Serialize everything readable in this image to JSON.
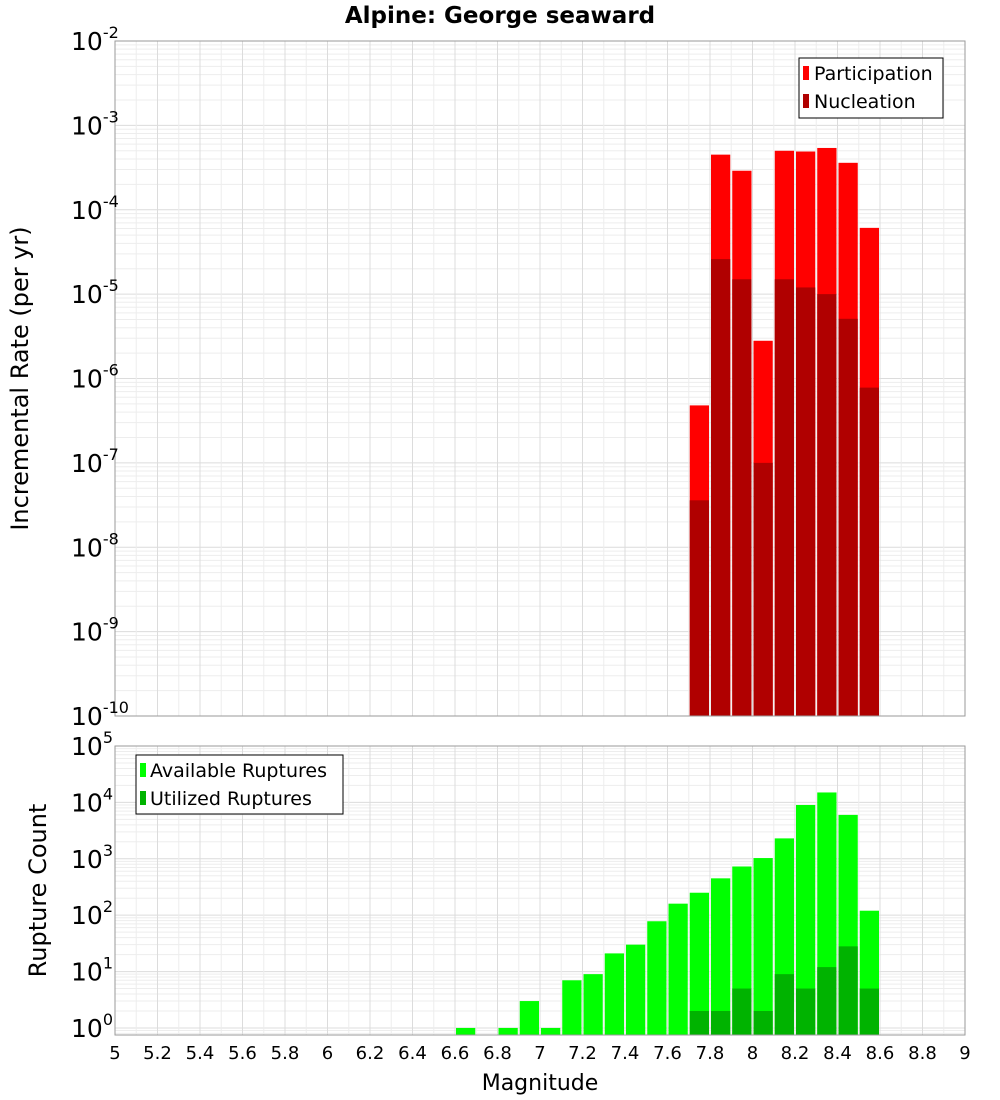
{
  "colors": {
    "participation": "#ff0000",
    "nucleation": "#b00000",
    "available": "#00ff00",
    "utilized": "#00b300",
    "grid_major": "#dcdcdc",
    "grid_minor": "#ededed"
  },
  "chart_data": [
    {
      "type": "bar",
      "title": "Alpine: George seaward",
      "xlabel": "",
      "ylabel": "Incremental Rate (per yr)",
      "y_scale": "log",
      "ylim": [
        1e-10,
        0.01
      ],
      "y_tick_labels": [
        {
          "base": "10",
          "exp": "-10"
        },
        {
          "base": "10",
          "exp": "-9"
        },
        {
          "base": "10",
          "exp": "-8"
        },
        {
          "base": "10",
          "exp": "-7"
        },
        {
          "base": "10",
          "exp": "-6"
        },
        {
          "base": "10",
          "exp": "-5"
        },
        {
          "base": "10",
          "exp": "-4"
        },
        {
          "base": "10",
          "exp": "-3"
        },
        {
          "base": "10",
          "exp": "-2"
        }
      ],
      "xlim": [
        5,
        9
      ],
      "bin_width": 0.1,
      "grid": true,
      "legend_position": "top-right",
      "series": [
        {
          "name": "Participation",
          "x": [
            7.75,
            7.85,
            7.95,
            8.05,
            8.15,
            8.25,
            8.35,
            8.45,
            8.55
          ],
          "values": [
            4.8e-07,
            0.00045,
            0.00029,
            2.8e-06,
            0.0005,
            0.00049,
            0.00054,
            0.00036,
            6.1e-05
          ]
        },
        {
          "name": "Nucleation",
          "x": [
            7.75,
            7.85,
            7.95,
            8.05,
            8.15,
            8.25,
            8.35,
            8.45,
            8.55
          ],
          "values": [
            3.6e-08,
            2.6e-05,
            1.5e-05,
            1e-07,
            1.5e-05,
            1.2e-05,
            1e-05,
            5.1e-06,
            7.8e-07
          ]
        }
      ]
    },
    {
      "type": "bar",
      "title": "",
      "xlabel": "Magnitude",
      "ylabel": "Rupture Count",
      "y_scale": "log",
      "ylim": [
        0.75,
        100000
      ],
      "y_tick_labels": [
        {
          "base": "10",
          "exp": "0"
        },
        {
          "base": "10",
          "exp": "1"
        },
        {
          "base": "10",
          "exp": "2"
        },
        {
          "base": "10",
          "exp": "3"
        },
        {
          "base": "10",
          "exp": "4"
        },
        {
          "base": "10",
          "exp": "5"
        }
      ],
      "xlim": [
        5,
        9
      ],
      "x_tick_labels": [
        "5",
        "5.2",
        "5.4",
        "5.6",
        "5.8",
        "6",
        "6.2",
        "6.4",
        "6.6",
        "6.8",
        "7",
        "7.2",
        "7.4",
        "7.6",
        "7.8",
        "8",
        "8.2",
        "8.4",
        "8.6",
        "8.8",
        "9"
      ],
      "bin_width": 0.1,
      "grid": true,
      "legend_position": "top-left",
      "series": [
        {
          "name": "Available Ruptures",
          "x": [
            6.65,
            6.85,
            6.95,
            7.05,
            7.15,
            7.25,
            7.35,
            7.45,
            7.55,
            7.65,
            7.75,
            7.85,
            7.95,
            8.05,
            8.15,
            8.25,
            8.35,
            8.45,
            8.55
          ],
          "values": [
            1,
            1,
            3,
            1,
            7,
            9,
            21,
            30,
            78,
            160,
            250,
            450,
            730,
            1030,
            2300,
            9000,
            15000,
            6000,
            120
          ]
        },
        {
          "name": "Utilized Ruptures",
          "x": [
            7.75,
            7.85,
            7.95,
            8.05,
            8.15,
            8.25,
            8.35,
            8.45,
            8.55
          ],
          "values": [
            2,
            2,
            5,
            2,
            9,
            5,
            12,
            28,
            5
          ]
        }
      ]
    }
  ]
}
